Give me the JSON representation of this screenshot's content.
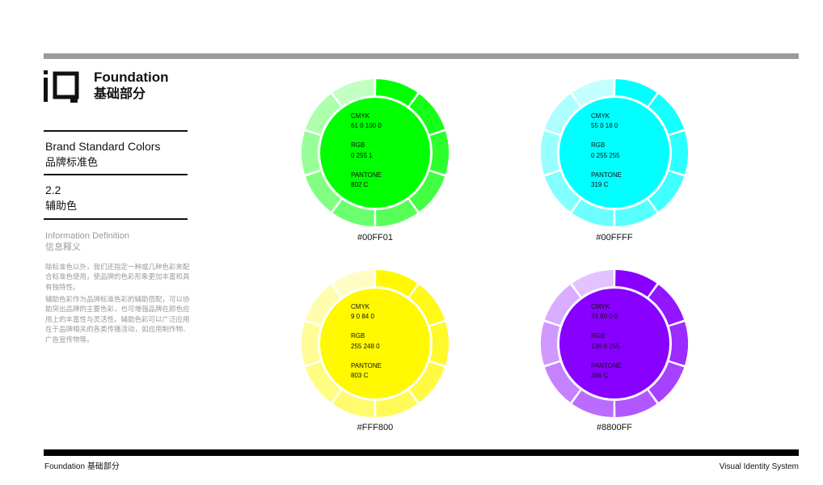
{
  "header": {
    "title": "Foundation",
    "subtitle": "基础部分",
    "logo_text": "iQ"
  },
  "section": {
    "title_en": "Brand Standard Colors",
    "title_cn": "品牌标准色",
    "number": "2.2",
    "name_cn": "辅助色"
  },
  "info": {
    "title_en": "Information Definition",
    "title_cn": "信息释义",
    "paragraphs": [
      "除标准色以外，我们还指定一种或几种色彩来配合标准色使用，使品牌的色彩形象更加丰富和具有独特性。",
      "辅助色彩作为品牌标准色彩的辅助搭配，可以协助突出品牌的主要色彩，也可增强品牌在颜色应用上的丰富性与灵活性。辅助色彩可以广泛应用在于品牌相关的各类传播活动，如应用制作物、广告宣传物等。"
    ]
  },
  "colors": [
    {
      "hex_label": "#00FF01",
      "base": "#00FF01",
      "cmyk_label": "CMYK",
      "cmyk": "61  0  100  0",
      "rgb_label": "RGB",
      "rgb": "0  255  1",
      "pantone_label": "PANTONE",
      "pantone": "802 C"
    },
    {
      "hex_label": "#00FFFF",
      "base": "#00FFFF",
      "cmyk_label": "CMYK",
      "cmyk": "55  0  18  0",
      "rgb_label": "RGB",
      "rgb": "0  255  255",
      "pantone_label": "PANTONE",
      "pantone": "319 C"
    },
    {
      "hex_label": "#FFF800",
      "base": "#FFF800",
      "cmyk_label": "CMYK",
      "cmyk": "9  0  84  0",
      "rgb_label": "RGB",
      "rgb": "255  248  0",
      "pantone_label": "PANTONE",
      "pantone": "803 C"
    },
    {
      "hex_label": "#8800FF",
      "base": "#8800FF",
      "cmyk_label": "CMYK",
      "cmyk": "74  80  0  0",
      "rgb_label": "RGB",
      "rgb": "136  0  255",
      "pantone_label": "PANTONE",
      "pantone": "266 C"
    }
  ],
  "footer": {
    "left": "Foundation 基础部分",
    "right": "Visual Identity System"
  }
}
